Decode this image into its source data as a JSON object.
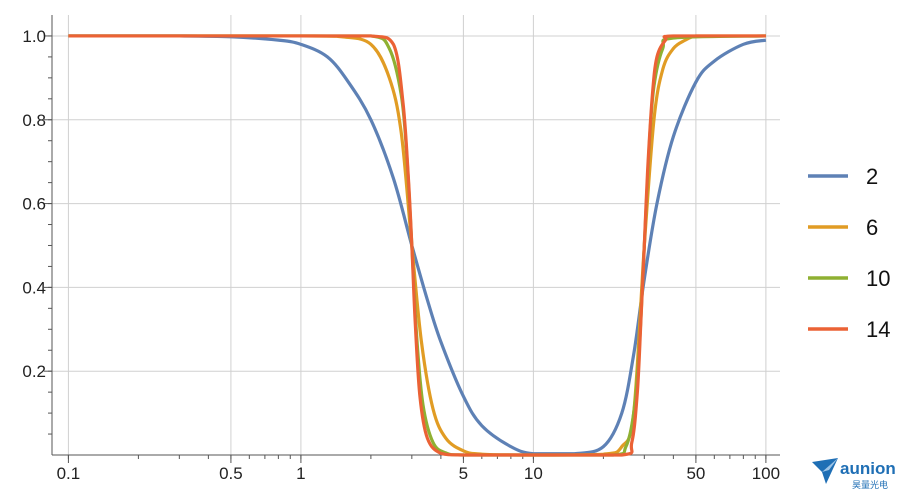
{
  "chart_data": {
    "type": "line",
    "x_scale": "log",
    "xlim": [
      0.085,
      115
    ],
    "ylim": [
      0,
      1.05
    ],
    "x_ticks": [
      {
        "value": 0.1,
        "label": "0.1"
      },
      {
        "value": 0.5,
        "label": "0.5"
      },
      {
        "value": 1,
        "label": "1"
      },
      {
        "value": 5,
        "label": "5"
      },
      {
        "value": 10,
        "label": "10"
      },
      {
        "value": 50,
        "label": "50"
      },
      {
        "value": 100,
        "label": "100"
      }
    ],
    "y_ticks": [
      {
        "value": 0.2,
        "label": "0.2"
      },
      {
        "value": 0.4,
        "label": "0.4"
      },
      {
        "value": 0.6,
        "label": "0.6"
      },
      {
        "value": 0.8,
        "label": "0.8"
      },
      {
        "value": 1.0,
        "label": "1.0"
      }
    ],
    "grid": true,
    "legend_position": "right",
    "series": [
      {
        "name": "2",
        "color": "#5e81b5",
        "x": [
          0.1,
          0.3,
          0.5,
          0.8,
          1.0,
          1.3,
          1.6,
          2.0,
          2.5,
          3.0,
          3.5,
          4.0,
          5.0,
          6.0,
          8.0,
          10,
          15,
          20,
          24,
          27,
          30,
          34,
          40,
          50,
          60,
          80,
          100
        ],
        "values": [
          1.0,
          1.0,
          0.998,
          0.99,
          0.98,
          0.95,
          0.89,
          0.8,
          0.66,
          0.5,
          0.37,
          0.27,
          0.14,
          0.07,
          0.02,
          0.003,
          0.003,
          0.02,
          0.1,
          0.24,
          0.42,
          0.6,
          0.76,
          0.89,
          0.94,
          0.98,
          0.99
        ]
      },
      {
        "name": "6",
        "color": "#e19c24",
        "x": [
          0.1,
          1.0,
          1.5,
          2.0,
          2.4,
          2.7,
          3.0,
          3.3,
          3.7,
          4.2,
          5.0,
          6.0,
          10,
          20,
          24,
          27,
          30,
          33,
          36,
          40,
          45,
          50,
          60,
          100
        ],
        "values": [
          1.0,
          1.0,
          0.998,
          0.98,
          0.9,
          0.77,
          0.5,
          0.27,
          0.11,
          0.04,
          0.01,
          0.002,
          0.0,
          0.002,
          0.02,
          0.1,
          0.5,
          0.8,
          0.92,
          0.97,
          0.99,
          1.0,
          1.0,
          1.0
        ]
      },
      {
        "name": "10",
        "color": "#8fb032",
        "x": [
          0.1,
          1.0,
          2.0,
          2.4,
          2.7,
          2.85,
          3.0,
          3.15,
          3.35,
          3.7,
          4.2,
          5.0,
          10,
          22,
          25,
          27,
          28.5,
          30,
          31.5,
          33,
          36,
          40,
          100
        ],
        "values": [
          1.0,
          1.0,
          1.0,
          0.97,
          0.86,
          0.72,
          0.5,
          0.28,
          0.12,
          0.03,
          0.005,
          0.0,
          0.0,
          0.0,
          0.02,
          0.1,
          0.25,
          0.5,
          0.74,
          0.88,
          0.97,
          0.995,
          1.0
        ]
      },
      {
        "name": "14",
        "color": "#eb6235",
        "x": [
          0.1,
          1.0,
          2.0,
          2.5,
          2.75,
          2.9,
          3.0,
          3.1,
          3.25,
          3.5,
          4.0,
          5.0,
          10,
          24,
          26.5,
          28,
          29,
          30,
          31,
          32.5,
          34,
          37,
          40,
          100
        ],
        "values": [
          1.0,
          1.0,
          1.0,
          0.98,
          0.84,
          0.66,
          0.5,
          0.32,
          0.14,
          0.04,
          0.004,
          0.0,
          0.0,
          0.0,
          0.03,
          0.15,
          0.32,
          0.5,
          0.68,
          0.86,
          0.95,
          0.99,
          1.0,
          1.0
        ]
      }
    ]
  },
  "watermark": {
    "brand": "aunion",
    "subtitle": "昊量光电",
    "color": "#1f6fb5"
  }
}
